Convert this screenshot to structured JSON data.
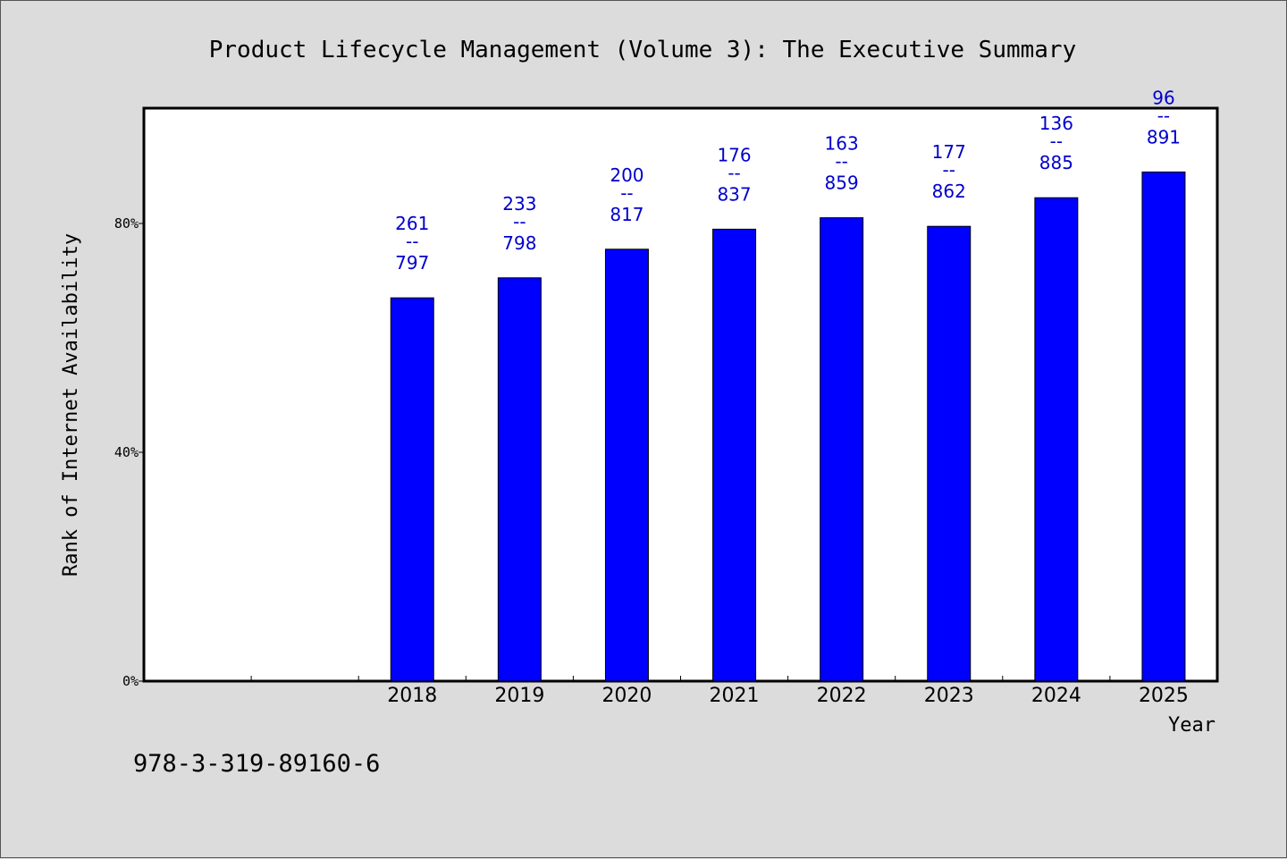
{
  "chart_data": {
    "type": "bar",
    "title": "Product Lifecycle Management (Volume 3): The Executive Summary",
    "xlabel": "Year",
    "ylabel": "Rank of Internet Availability",
    "categories": [
      "2018",
      "2019",
      "2020",
      "2021",
      "2022",
      "2023",
      "2024",
      "2025"
    ],
    "values": [
      67,
      70.5,
      75.5,
      79,
      81,
      79.5,
      84.5,
      89
    ],
    "ylim": [
      0,
      100
    ],
    "yticks": [
      0,
      40,
      80
    ],
    "ytick_labels": [
      "0%",
      "40%",
      "80%"
    ],
    "data_labels": [
      {
        "top": "261",
        "mid": "--",
        "bottom": "797"
      },
      {
        "top": "233",
        "mid": "--",
        "bottom": "798"
      },
      {
        "top": "200",
        "mid": "--",
        "bottom": "817"
      },
      {
        "top": "176",
        "mid": "--",
        "bottom": "837"
      },
      {
        "top": "163",
        "mid": "--",
        "bottom": "859"
      },
      {
        "top": "177",
        "mid": "--",
        "bottom": "862"
      },
      {
        "top": "136",
        "mid": "--",
        "bottom": "885"
      },
      {
        "top": "96",
        "mid": "--",
        "bottom": "891"
      }
    ],
    "bar_color": "#0000ff",
    "label_color": "#0000cc",
    "grid": false,
    "legend": "none"
  },
  "footer": {
    "isbn": "978-3-319-89160-6"
  }
}
